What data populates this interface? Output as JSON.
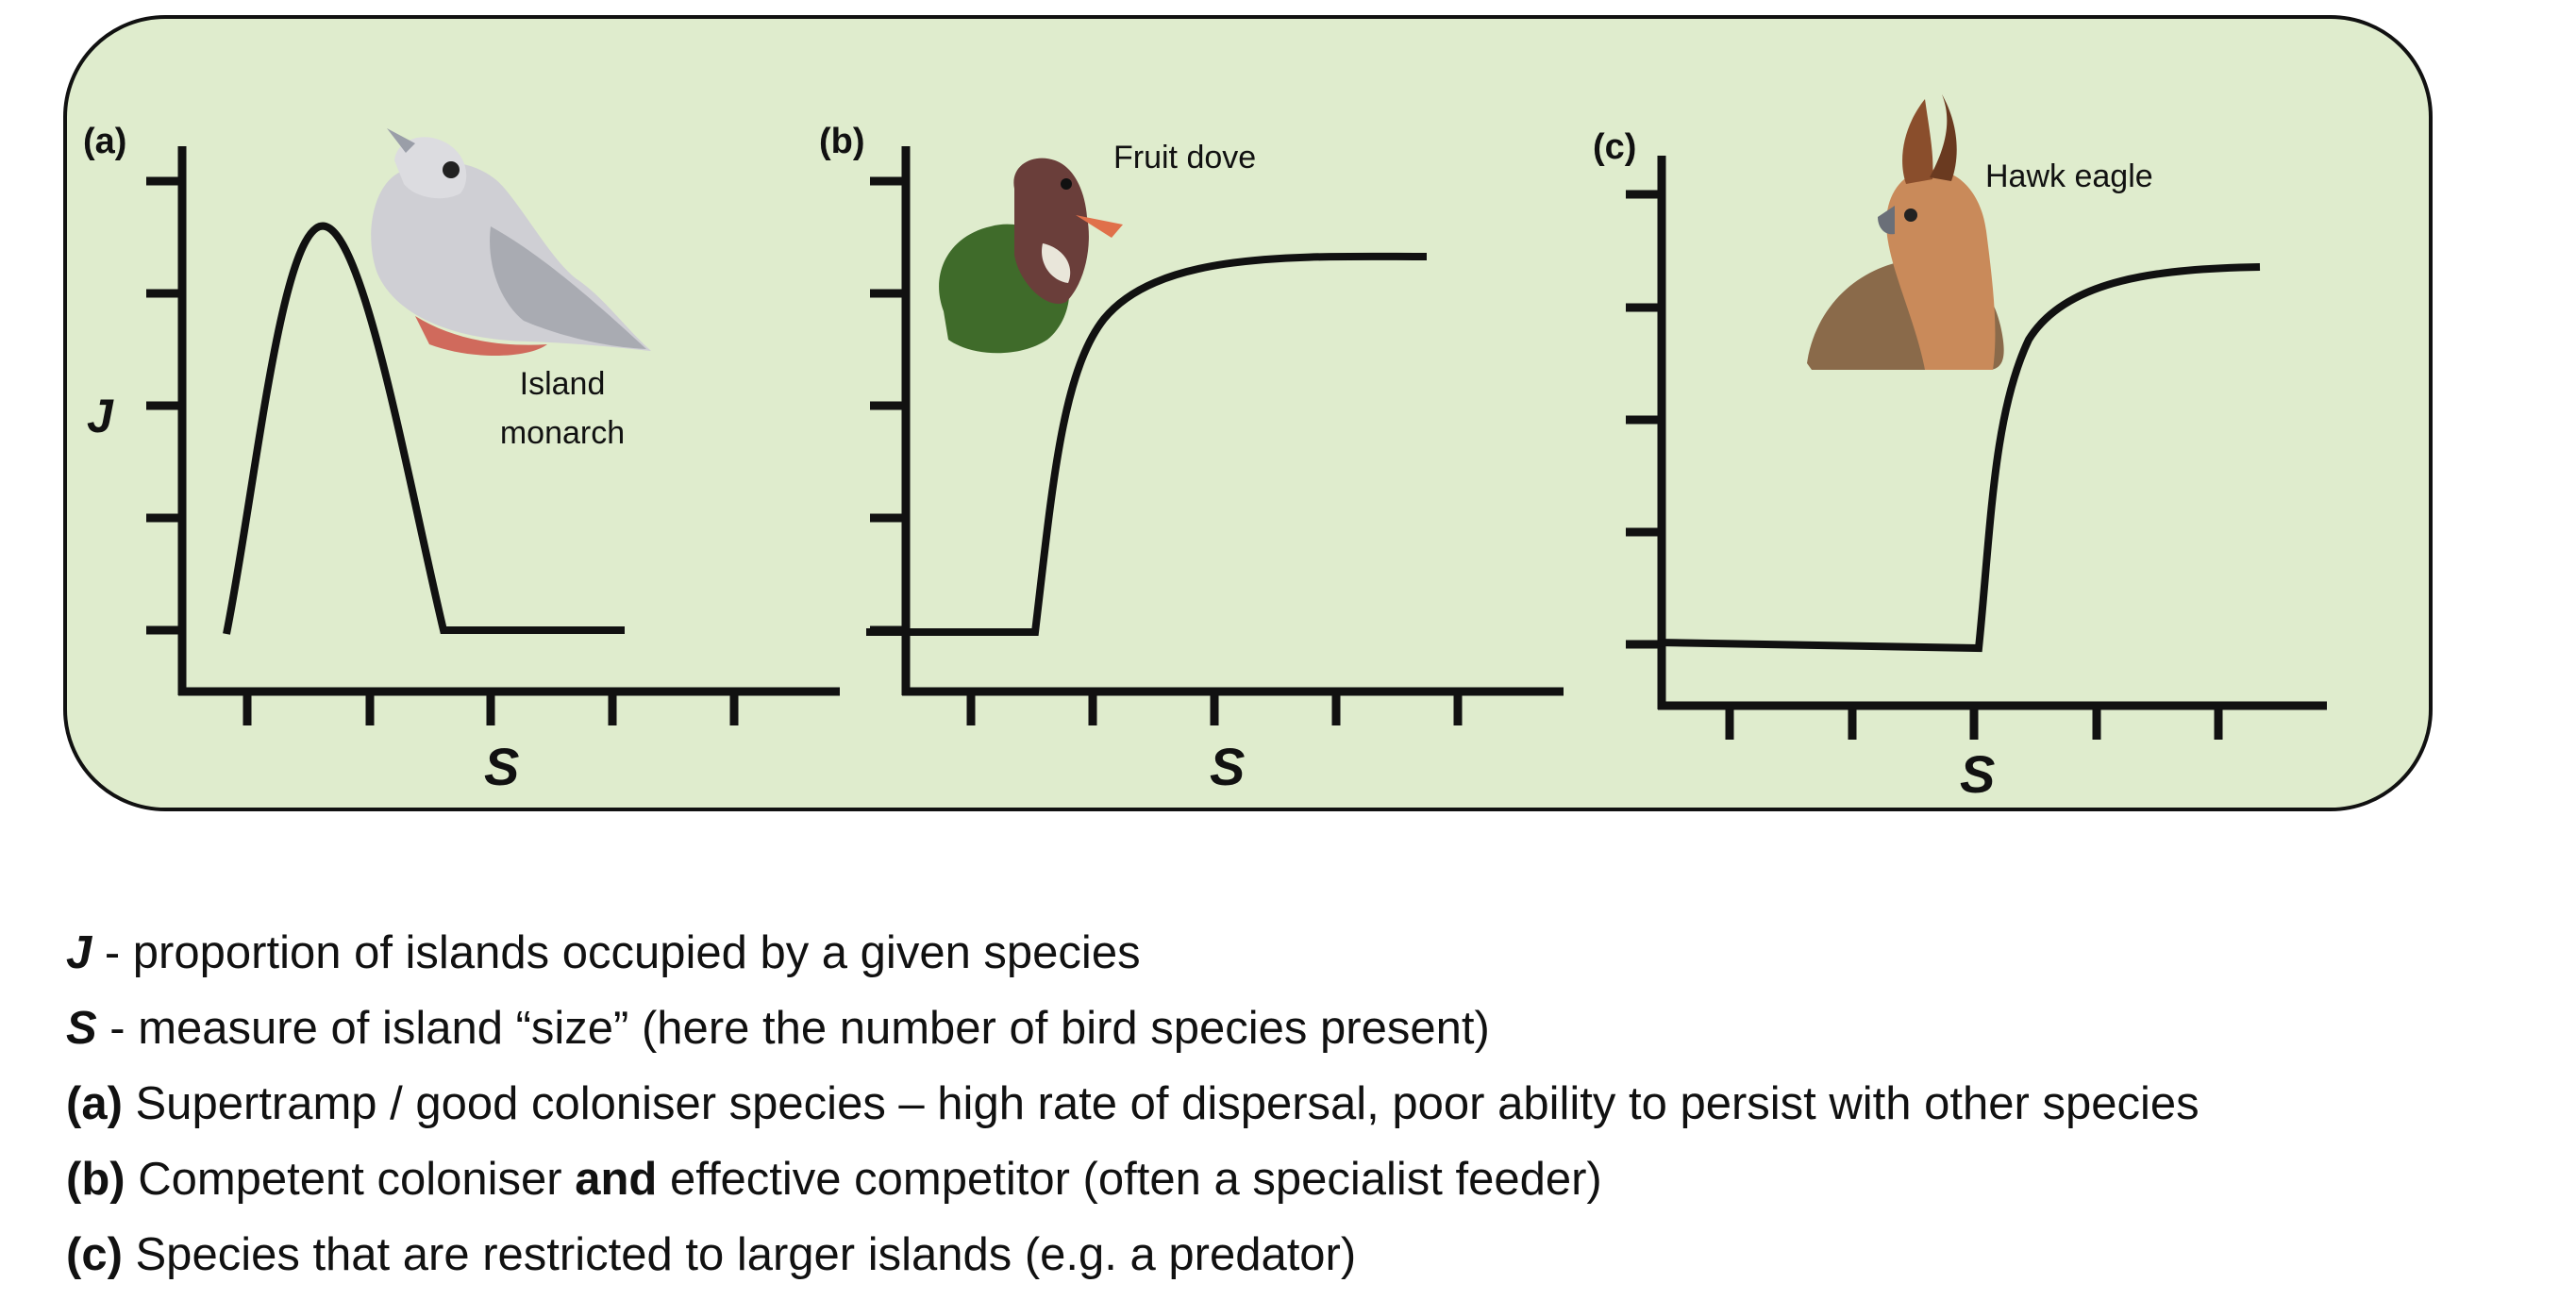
{
  "panels": [
    {
      "id": "a",
      "label": "(a)",
      "ylabel": "J",
      "xlabel": "S",
      "bird_name": "Island monarch",
      "bird_lines": [
        "Island",
        "monarch"
      ],
      "curve": "hump-then-floor"
    },
    {
      "id": "b",
      "label": "(b)",
      "ylabel": "",
      "xlabel": "S",
      "bird_name": "Fruit dove",
      "bird_lines": [
        "Fruit dove"
      ],
      "curve": "early-rise-to-plateau"
    },
    {
      "id": "c",
      "label": "(c)",
      "ylabel": "",
      "xlabel": "S",
      "bird_name": "Hawk eagle",
      "bird_lines": [
        "Hawk eagle"
      ],
      "curve": "late-rise-to-plateau"
    }
  ],
  "legend": {
    "j_key": "J",
    "j_text": " - proportion of islands occupied by a given species",
    "s_key": "S",
    "s_text": " - measure of island “size” (here the number of bird species present)",
    "a_key": "(a)",
    "a_text": " Supertramp / good coloniser species – high rate of dispersal, poor ability to persist with other species",
    "b_key": "(b)",
    "b_text_1": " Competent coloniser ",
    "b_bold": "and",
    "b_text_2": " effective competitor (often a specialist feeder)",
    "c_key": "(c)",
    "c_text": " Species that are restricted to larger islands (e.g. a predator)"
  },
  "colors": {
    "panel_bg": "#dfeccd",
    "line": "#111111"
  }
}
